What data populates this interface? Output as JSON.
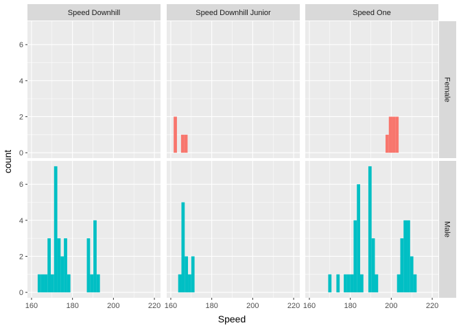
{
  "chart_data": {
    "type": "bar",
    "subtype": "faceted-histogram",
    "xlabel": "Speed",
    "ylabel": "count",
    "xlim": [
      158,
      223
    ],
    "ylim": [
      -0.3,
      7.3
    ],
    "x_ticks": [
      160,
      180,
      200,
      220
    ],
    "y_ticks": [
      0,
      2,
      4,
      6
    ],
    "binwidth": 1.6,
    "columns": [
      "Speed Downhill",
      "Speed Downhill Junior",
      "Speed One"
    ],
    "rows": [
      "Female",
      "Male"
    ],
    "grid": true,
    "legend": "none",
    "colors": {
      "Female": "#F8766D",
      "Male": "#00BFC4",
      "panel_bg": "#EBEBEB",
      "strip_bg": "#D9D9D9",
      "grid": "#FFFFFF"
    },
    "panels": [
      {
        "column": "Speed Downhill",
        "row": "Female",
        "bins": []
      },
      {
        "column": "Speed Downhill Junior",
        "row": "Female",
        "bins": [
          {
            "x": 162.2,
            "count": 2
          },
          {
            "x": 165.8,
            "count": 1
          },
          {
            "x": 167.4,
            "count": 1
          }
        ]
      },
      {
        "column": "Speed One",
        "row": "Female",
        "bins": [
          {
            "x": 198.0,
            "count": 1
          },
          {
            "x": 199.6,
            "count": 2
          },
          {
            "x": 201.2,
            "count": 2
          },
          {
            "x": 202.8,
            "count": 2
          }
        ]
      },
      {
        "column": "Speed Downhill",
        "row": "Male",
        "bins": [
          {
            "x": 163.8,
            "count": 1
          },
          {
            "x": 165.4,
            "count": 1
          },
          {
            "x": 167.0,
            "count": 1
          },
          {
            "x": 168.6,
            "count": 3
          },
          {
            "x": 170.2,
            "count": 1
          },
          {
            "x": 171.8,
            "count": 7
          },
          {
            "x": 173.4,
            "count": 3
          },
          {
            "x": 175.0,
            "count": 2
          },
          {
            "x": 176.6,
            "count": 3
          },
          {
            "x": 178.2,
            "count": 1
          },
          {
            "x": 187.8,
            "count": 3
          },
          {
            "x": 189.4,
            "count": 1
          },
          {
            "x": 191.0,
            "count": 4
          },
          {
            "x": 192.6,
            "count": 1
          }
        ]
      },
      {
        "column": "Speed Downhill Junior",
        "row": "Male",
        "bins": [
          {
            "x": 164.4,
            "count": 1
          },
          {
            "x": 166.0,
            "count": 5
          },
          {
            "x": 167.6,
            "count": 2
          },
          {
            "x": 169.2,
            "count": 1
          },
          {
            "x": 170.8,
            "count": 2
          }
        ]
      },
      {
        "column": "Speed One",
        "row": "Male",
        "bins": [
          {
            "x": 170.0,
            "count": 1
          },
          {
            "x": 174.0,
            "count": 1
          },
          {
            "x": 177.6,
            "count": 1
          },
          {
            "x": 179.2,
            "count": 1
          },
          {
            "x": 180.8,
            "count": 1
          },
          {
            "x": 182.4,
            "count": 4
          },
          {
            "x": 184.0,
            "count": 6
          },
          {
            "x": 185.6,
            "count": 1
          },
          {
            "x": 189.6,
            "count": 7
          },
          {
            "x": 191.2,
            "count": 3
          },
          {
            "x": 192.8,
            "count": 1
          },
          {
            "x": 203.6,
            "count": 1
          },
          {
            "x": 205.2,
            "count": 3
          },
          {
            "x": 206.8,
            "count": 4
          },
          {
            "x": 208.4,
            "count": 4
          },
          {
            "x": 210.0,
            "count": 2
          },
          {
            "x": 211.6,
            "count": 1
          }
        ]
      }
    ]
  }
}
